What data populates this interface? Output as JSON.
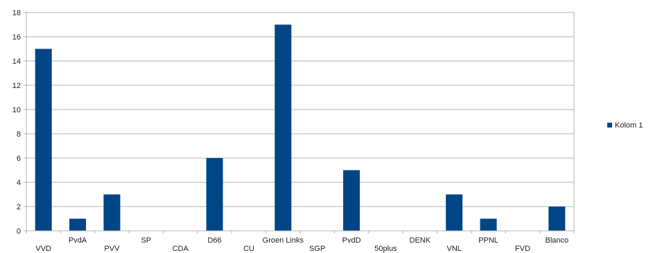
{
  "chart_data": {
    "type": "bar",
    "categories": [
      "VVD",
      "PvdA",
      "PVV",
      "SP",
      "CDA",
      "D66",
      "CU",
      "Groen Links",
      "SGP",
      "PvdD",
      "50plus",
      "DENK",
      "VNL",
      "PPNL",
      "FVD",
      "Blanco"
    ],
    "series": [
      {
        "name": "Kolom 1",
        "values": [
          15,
          1,
          3,
          0,
          0,
          6,
          0,
          17,
          0,
          5,
          0,
          0,
          3,
          1,
          0,
          2
        ]
      }
    ],
    "title": "",
    "xlabel": "",
    "ylabel": "",
    "ylim": [
      0,
      18
    ],
    "yticks": [
      "0",
      "2",
      "4",
      "6",
      "8",
      "10",
      "12",
      "14",
      "16",
      "18"
    ],
    "grid": true,
    "legend_position": "right",
    "bar_color": "#004586",
    "grid_color": "#b3b3b3",
    "axis_color": "#b3b3b3"
  }
}
